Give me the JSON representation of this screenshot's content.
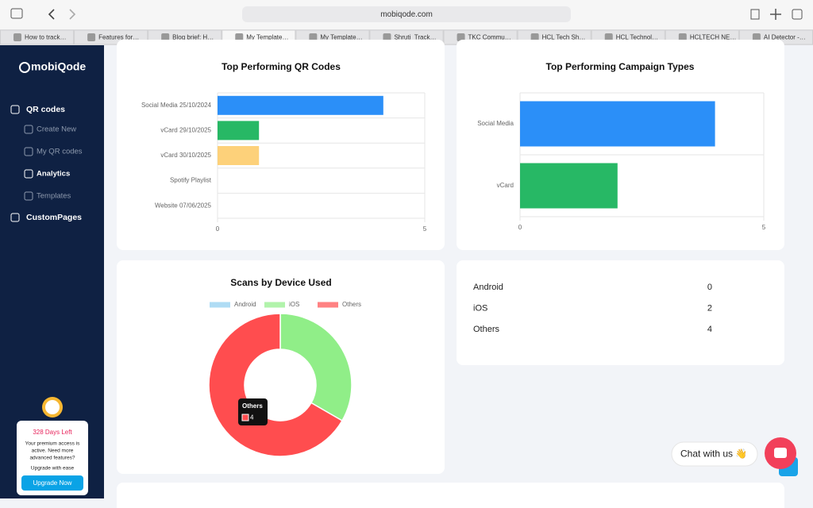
{
  "browser": {
    "url": "mobiqode.com",
    "tabs": [
      "How to track…",
      "Features for…",
      "Blog brief: H…",
      "My Template…",
      "My Template…",
      "Shruti_Track…",
      "TKC Commu…",
      "HCL Tech Sh…",
      "HCL Technol…",
      "HCLTECH NE…",
      "AI Detector -…"
    ]
  },
  "sidebar": {
    "logo": "mobiQode",
    "nav": [
      "QR codes",
      "Create New",
      "My QR codes",
      "Analytics",
      "Templates",
      "CustomPages"
    ],
    "promo": {
      "days": "328 Days Left",
      "text_1": "Your premium access is",
      "text_2": "active. Need more",
      "text_3": "advanced features?",
      "text_4": "Upgrade with ease",
      "button": "Upgrade Now"
    }
  },
  "chart_data": [
    {
      "type": "hbar",
      "title": "Top Performing QR Codes",
      "categories": [
        "Social Media 25/10/2024",
        "vCard 29/10/2025",
        "vCard 30/10/2025",
        "Spotify Playlist",
        "Website 07/06/2025"
      ],
      "values": [
        4,
        1,
        1,
        0,
        0
      ],
      "colors": [
        "#2b8ff8",
        "#27b865",
        "#fdd17a",
        "#2b8ff8",
        "#2b8ff8"
      ],
      "xlim": [
        0,
        5
      ],
      "xticks": [
        0,
        5
      ],
      "grid": true
    },
    {
      "type": "hbar",
      "title": "Top Performing Campaign Types",
      "categories": [
        "Social Media",
        "vCard"
      ],
      "values": [
        4,
        2
      ],
      "colors": [
        "#2b8ff8",
        "#27b865"
      ],
      "xlim": [
        0,
        5
      ],
      "xticks": [
        0,
        5
      ],
      "grid": true
    },
    {
      "type": "doughnut",
      "title": "Scans by Device Used",
      "categories": [
        "Android",
        "iOS",
        "Others"
      ],
      "values": [
        0,
        2,
        4
      ],
      "colors": [
        "#8dcdef",
        "#90ee88",
        "#ff4d4f"
      ],
      "legend": "top"
    }
  ],
  "tooltip": {
    "title": "Others"
  },
  "device_table": {
    "rows": [
      [
        "Android",
        0
      ],
      [
        "iOS",
        2
      ],
      [
        "Others",
        4
      ]
    ]
  },
  "chat": {
    "label": "Chat with us 👋"
  }
}
